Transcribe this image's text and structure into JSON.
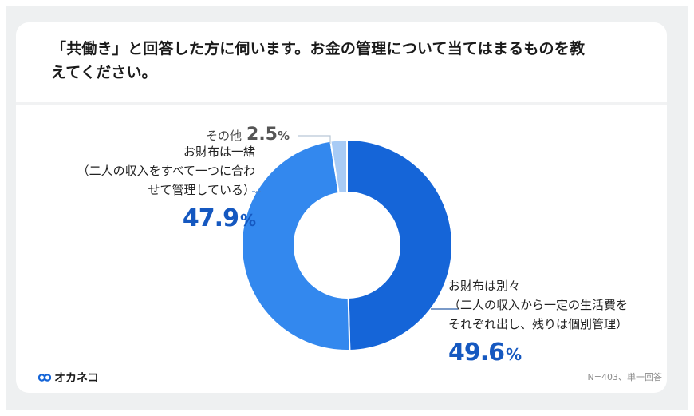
{
  "page": {
    "title": "「共働き」と回答した方に伺います。お金の管理について当てはまるものを教えてください。",
    "title_line1": "「共働き」と回答した方に伺います。お金の管理について当てはまるものを教",
    "title_line2": "えてください。",
    "note": "N=403、単一回答",
    "logo_text": "オカネコ",
    "logo_icon": "glasses-icon"
  },
  "labels": {
    "separate": {
      "line1": "お財布は別々",
      "line2": "（二人の収入から一定の生活費を",
      "line3": "それぞれ出し、残りは個別管理）",
      "value": "49.6",
      "unit": "%"
    },
    "joint": {
      "line1": "お財布は一緒",
      "line2": "（二人の収入をすべて一つに合わ",
      "line3": "せて管理している）",
      "value": "47.9",
      "unit": "%"
    },
    "other": {
      "label": "その他",
      "value": "2.5",
      "unit": "%"
    }
  },
  "colors": {
    "separate": "#1565d8",
    "joint": "#3388ee",
    "other": "#a8cbf5",
    "pct_text": "#1558c0",
    "background": "#eef0f1"
  },
  "chart_data": {
    "type": "pie",
    "subtype": "donut",
    "title": "「共働き」と回答した方に伺います。お金の管理について当てはまるものを教えてください。",
    "categories": [
      "お財布は別々（二人の収入から一定の生活費をそれぞれ出し、残りは個別管理）",
      "お財布は一緒（二人の収入をすべて一つに合わせて管理している）",
      "その他"
    ],
    "values": [
      49.6,
      47.9,
      2.5
    ],
    "unit": "%",
    "start_angle": "12 o'clock, clockwise",
    "colors": [
      "#1565d8",
      "#3388ee",
      "#a8cbf5"
    ],
    "footnote": "N=403、単一回答"
  }
}
